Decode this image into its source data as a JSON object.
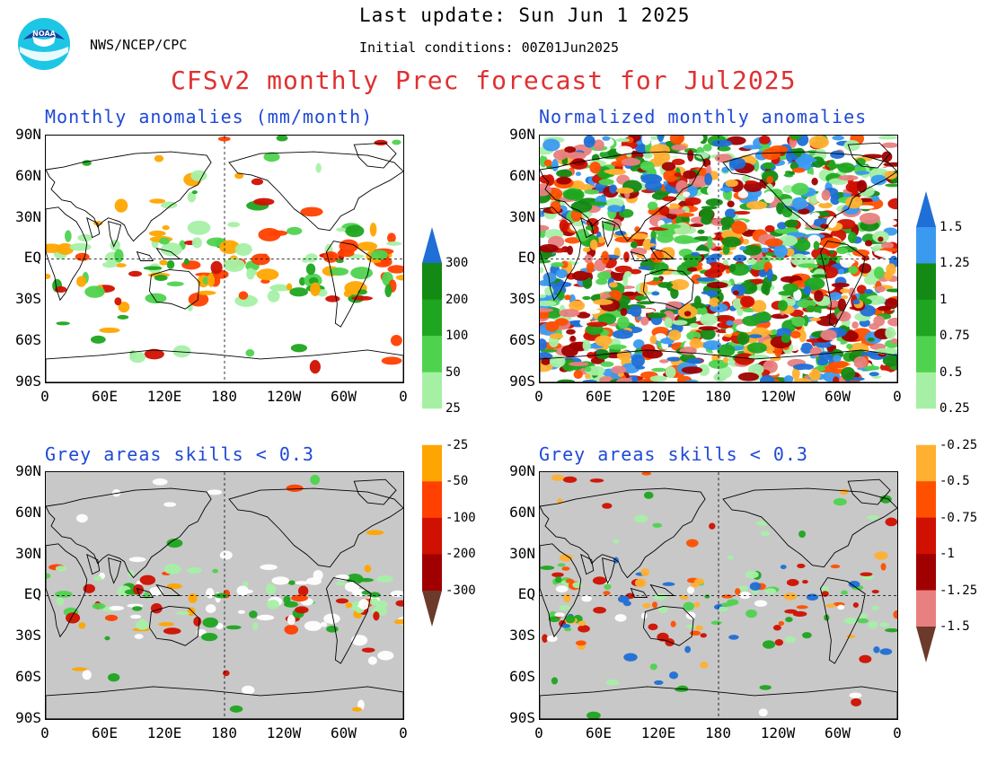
{
  "header": {
    "last_update": "Last update: Sun Jun 1 2025",
    "initial_conditions": "Initial conditions: 00Z01Jun2025",
    "agency": "NWS/NCEP/CPC",
    "title": "CFSv2 monthly Prec forecast for Jul2025",
    "logo_text": "NOAA"
  },
  "panels": {
    "top_left": {
      "title": "Monthly anomalies (mm/month)"
    },
    "top_right": {
      "title": "Normalized monthly anomalies"
    },
    "bottom_left": {
      "title": "Grey areas skills < 0.3"
    },
    "bottom_right": {
      "title": "Grey areas skills < 0.3"
    }
  },
  "axes": {
    "lat_labels": [
      "90N",
      "60N",
      "30N",
      "EQ",
      "30S",
      "60S",
      "90S"
    ],
    "lon_labels": [
      "0",
      "60E",
      "120E",
      "180",
      "120W",
      "60W",
      "0"
    ]
  },
  "colorbar_left": {
    "labels": [
      "300",
      "200",
      "100",
      "50",
      "25",
      "-25",
      "-50",
      "-100",
      "-200",
      "-300"
    ],
    "colors": [
      "#1f6fd6",
      "#138a13",
      "#1fa51f",
      "#4fd34f",
      "#a6f0a6",
      "#ffffff",
      "#ffa500",
      "#ff4000",
      "#d01000",
      "#a00000",
      "#6b3a2a"
    ]
  },
  "colorbar_right": {
    "labels": [
      "1.5",
      "1.25",
      "1",
      "0.75",
      "0.5",
      "0.25",
      "-0.25",
      "-0.5",
      "-0.75",
      "-1",
      "-1.25",
      "-1.5"
    ],
    "colors": [
      "#1f6fd6",
      "#3a9af0",
      "#138a13",
      "#1fa51f",
      "#4fd34f",
      "#a6f0a6",
      "#ffffff",
      "#ffb030",
      "#ff5000",
      "#d01000",
      "#a00000",
      "#e88080",
      "#6b3a2a"
    ]
  },
  "colors": {
    "title_red": "#e03030",
    "panel_title_blue": "#1f49d6",
    "grey_mask": "#c8c8c8"
  }
}
